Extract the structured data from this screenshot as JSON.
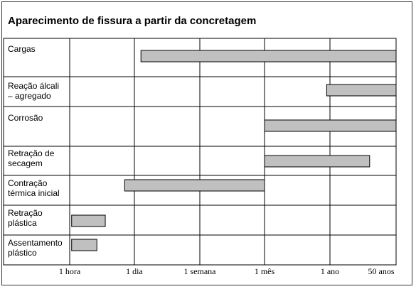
{
  "colors": {
    "bar_fill": "#c0c0c0",
    "bar_stroke": "#000000",
    "grid": "#000000",
    "text": "#000000"
  },
  "chart_data": {
    "type": "bar",
    "orientation": "horizontal",
    "title": "Aparecimento de fissura a partir da concretagem",
    "xlabel": "",
    "ylabel": "",
    "grid": true,
    "legend": "none",
    "x_ticks": [
      "1 hora",
      "1 dia",
      "1 semana",
      "1 mês",
      "1 ano",
      "50 anos"
    ],
    "categories": [
      [
        "Cargas"
      ],
      [
        "Reação  álcali",
        "– agregado"
      ],
      [
        "Corrosão"
      ],
      [
        "Retração     de",
        "secagem"
      ],
      [
        "Contração",
        "térmica inicial"
      ],
      [
        "Retração",
        "plástica"
      ],
      [
        "Assentamento",
        "plástico"
      ]
    ],
    "intervals": [
      {
        "start": 1.1,
        "end": 5.0
      },
      {
        "start": 3.95,
        "end": 5.0
      },
      {
        "start": 3.0,
        "end": 5.0
      },
      {
        "start": 3.0,
        "end": 4.6
      },
      {
        "start": 0.85,
        "end": 3.0
      },
      {
        "start": 0.03,
        "end": 0.55
      },
      {
        "start": 0.03,
        "end": 0.42
      }
    ]
  }
}
